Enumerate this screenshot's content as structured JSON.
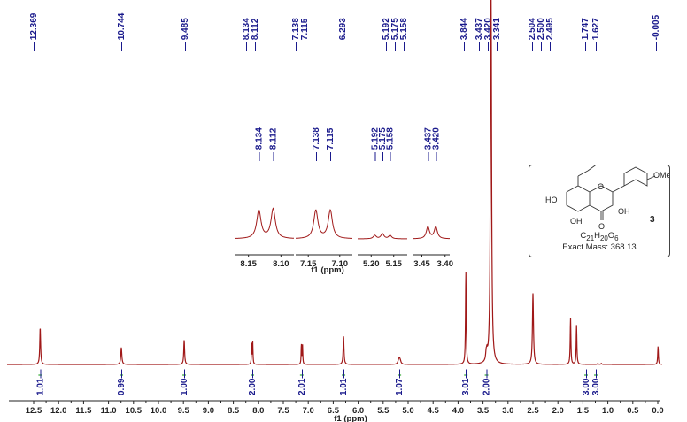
{
  "chart_data": {
    "type": "line",
    "title": "",
    "subtitle": "1H NMR spectrum",
    "xlabel": "f1 (ppm)",
    "ylabel": "",
    "x_reversed": true,
    "xlim": [
      12.8,
      -0.1
    ],
    "x_ticks": [
      12.5,
      12.0,
      11.5,
      11.0,
      10.5,
      10.0,
      9.5,
      9.0,
      8.5,
      8.0,
      7.5,
      7.0,
      6.5,
      6.0,
      5.5,
      5.0,
      4.5,
      4.0,
      3.5,
      3.0,
      2.5,
      2.0,
      1.5,
      1.0,
      0.5,
      0.0
    ],
    "x_tick_labels": [
      "12.5",
      "12.0",
      "11.5",
      "11.0",
      "10.5",
      "10.0",
      "9.5",
      "9.0",
      "8.5",
      "8.0",
      "7.5",
      "7.0",
      "6.5",
      "6.0",
      "5.5",
      "5.0",
      "4.5",
      "4.0",
      "3.5",
      "3.0",
      "2.5",
      "2.0",
      "1.5",
      "1.0",
      "0.5",
      "0.0"
    ],
    "grid": false,
    "line_color": "#a01818",
    "peak_labels": [
      {
        "group": [
          "12.369"
        ]
      },
      {
        "group": [
          "10.744"
        ]
      },
      {
        "group": [
          "9.485"
        ]
      },
      {
        "group": [
          "8.134",
          "8.112"
        ]
      },
      {
        "group": [
          "7.138",
          "7.115"
        ]
      },
      {
        "group": [
          "6.293"
        ]
      },
      {
        "group": [
          "5.192",
          "5.175",
          "5.158"
        ]
      },
      {
        "group": [
          "3.844"
        ]
      },
      {
        "group": [
          "3.437",
          "3.420",
          "3.341"
        ]
      },
      {
        "group": [
          "2.504",
          "2.500",
          "2.495"
        ]
      },
      {
        "group": [
          "1.747"
        ]
      },
      {
        "group": [
          "1.627"
        ]
      },
      {
        "group": [
          "-0.005"
        ]
      }
    ],
    "peaks": [
      {
        "ppm": 12.369,
        "height": 0.35,
        "width": 0.01
      },
      {
        "ppm": 10.744,
        "height": 0.16,
        "width": 0.012
      },
      {
        "ppm": 9.485,
        "height": 0.23,
        "width": 0.01
      },
      {
        "ppm": 8.134,
        "height": 0.19,
        "width": 0.006
      },
      {
        "ppm": 8.112,
        "height": 0.21,
        "width": 0.006
      },
      {
        "ppm": 7.138,
        "height": 0.19,
        "width": 0.006
      },
      {
        "ppm": 7.115,
        "height": 0.18,
        "width": 0.006
      },
      {
        "ppm": 6.293,
        "height": 0.27,
        "width": 0.01
      },
      {
        "ppm": 5.192,
        "height": 0.025,
        "width": 0.018
      },
      {
        "ppm": 5.175,
        "height": 0.04,
        "width": 0.018
      },
      {
        "ppm": 5.158,
        "height": 0.025,
        "width": 0.018
      },
      {
        "ppm": 3.844,
        "height": 0.88,
        "width": 0.008
      },
      {
        "ppm": 3.437,
        "height": 0.07,
        "width": 0.012
      },
      {
        "ppm": 3.42,
        "height": 0.07,
        "width": 0.012
      },
      {
        "ppm": 3.341,
        "height": 4.2,
        "width": 0.012
      },
      {
        "ppm": 2.5,
        "height": 0.67,
        "width": 0.012
      },
      {
        "ppm": 1.747,
        "height": 0.44,
        "width": 0.008
      },
      {
        "ppm": 1.627,
        "height": 0.37,
        "width": 0.008
      },
      {
        "ppm": 1.2,
        "height": 0.01,
        "width": 0.01
      },
      {
        "ppm": 1.13,
        "height": 0.01,
        "width": 0.01
      },
      {
        "ppm": -0.005,
        "height": 0.17,
        "width": 0.008
      }
    ],
    "integrals": [
      {
        "ppm": 12.369,
        "value": "1.01"
      },
      {
        "ppm": 10.744,
        "value": "0.99"
      },
      {
        "ppm": 9.485,
        "value": "1.00"
      },
      {
        "ppm": 8.12,
        "value": "2.00"
      },
      {
        "ppm": 7.13,
        "value": "2.01"
      },
      {
        "ppm": 6.293,
        "value": "1.01"
      },
      {
        "ppm": 5.175,
        "value": "1.07"
      },
      {
        "ppm": 3.844,
        "value": "3.01"
      },
      {
        "ppm": 3.43,
        "value": "2.00"
      },
      {
        "ppm": 1.747,
        "value": "3.00"
      },
      {
        "ppm": 1.627,
        "value": "3.00"
      }
    ],
    "inset": {
      "xlabel": "f1 (ppm)",
      "segments": [
        {
          "range": [
            8.17,
            8.08
          ],
          "ticks": [
            "8.15",
            "8.10"
          ],
          "tick_vals": [
            8.15,
            8.1
          ],
          "peak_labels": [
            "8.134",
            "8.112"
          ],
          "peaks": [
            [
              8.134,
              1.0
            ],
            [
              8.112,
              1.05
            ]
          ]
        },
        {
          "range": [
            7.17,
            7.08
          ],
          "ticks": [
            "7.15",
            "7.10"
          ],
          "tick_vals": [
            7.15,
            7.1
          ],
          "peak_labels": [
            "7.138",
            "7.115"
          ],
          "peaks": [
            [
              7.138,
              1.0
            ],
            [
              7.115,
              1.0
            ]
          ]
        },
        {
          "range": [
            5.23,
            5.12
          ],
          "ticks": [
            "5.20",
            "5.15"
          ],
          "tick_vals": [
            5.2,
            5.15
          ],
          "peak_labels": [
            "5.192",
            "5.175",
            "5.158"
          ],
          "peaks": [
            [
              5.192,
              0.12
            ],
            [
              5.175,
              0.18
            ],
            [
              5.158,
              0.12
            ]
          ]
        },
        {
          "range": [
            3.47,
            3.39
          ],
          "ticks": [
            "3.45",
            "3.40"
          ],
          "tick_vals": [
            3.45,
            3.4
          ],
          "peak_labels": [
            "3.437",
            "3.420"
          ],
          "peaks": [
            [
              3.437,
              0.42
            ],
            [
              3.42,
              0.42
            ]
          ]
        }
      ]
    }
  },
  "structure": {
    "compound_number": "3",
    "formula_parts": [
      "C",
      "21",
      "H",
      "20",
      "O",
      "6"
    ],
    "exact_mass_label": "Exact Mass: 368.13",
    "atoms": {
      "ho_left": "HO",
      "ome": "OMe",
      "ring_o": "O",
      "oh_3": "OH",
      "oh_5": "OH",
      "carbonyl_o": "O"
    }
  }
}
